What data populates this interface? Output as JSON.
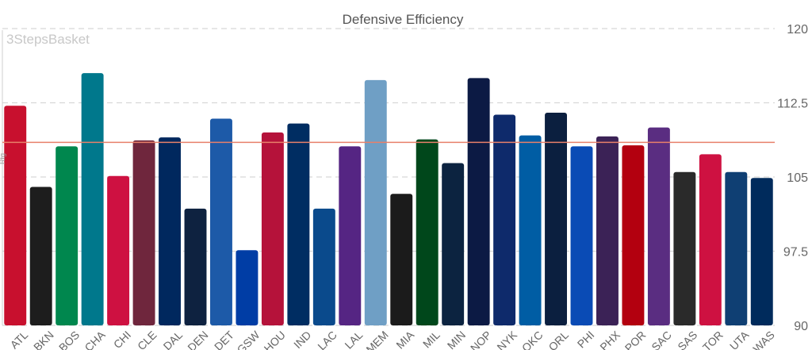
{
  "chart_data": {
    "type": "bar",
    "title": "Defensive Efficiency",
    "watermark": "3StepsBasket",
    "ylabel": "Rtg",
    "ylim": [
      90,
      120
    ],
    "yticks": [
      90,
      97.5,
      105,
      112.5,
      120
    ],
    "ytick_labels": [
      "90",
      "97.5",
      "105",
      "112.5",
      "120"
    ],
    "y_axis_position": "right",
    "grid": true,
    "average_line": 108.5,
    "average_line_color": "#e8806a",
    "categories": [
      "ATL",
      "BKN",
      "BOS",
      "CHA",
      "CHI",
      "CLE",
      "DAL",
      "DEN",
      "DET",
      "GSW",
      "HOU",
      "IND",
      "LAC",
      "LAL",
      "MEM",
      "MIA",
      "MIL",
      "MIN",
      "NOP",
      "NYK",
      "OKC",
      "ORL",
      "PHI",
      "PHX",
      "POR",
      "SAC",
      "SAS",
      "TOR",
      "UTA",
      "WAS"
    ],
    "values": [
      112.2,
      104.0,
      108.1,
      115.5,
      105.1,
      108.7,
      109.0,
      101.8,
      110.9,
      97.6,
      109.5,
      110.4,
      101.8,
      108.1,
      114.8,
      103.3,
      108.8,
      106.4,
      115.0,
      111.3,
      109.2,
      111.5,
      108.1,
      109.1,
      108.2,
      110.0,
      105.5,
      107.3,
      105.5,
      104.9
    ],
    "colors": [
      "#c8102e",
      "#1d1d1d",
      "#00874e",
      "#00788c",
      "#ce1141",
      "#6f263d",
      "#00285e",
      "#0e2240",
      "#1d5aa8",
      "#003da5",
      "#b5123a",
      "#002d62",
      "#0a4a8c",
      "#552583",
      "#6f9fc5",
      "#1b1b1b",
      "#00471b",
      "#0c2340",
      "#0c1a44",
      "#0e2a6b",
      "#005da4",
      "#0b1f3f",
      "#0a4bb5",
      "#3b2256",
      "#b3000f",
      "#5a2d81",
      "#2a2a2a",
      "#ce1141",
      "#0f3f73",
      "#002b5c"
    ]
  }
}
